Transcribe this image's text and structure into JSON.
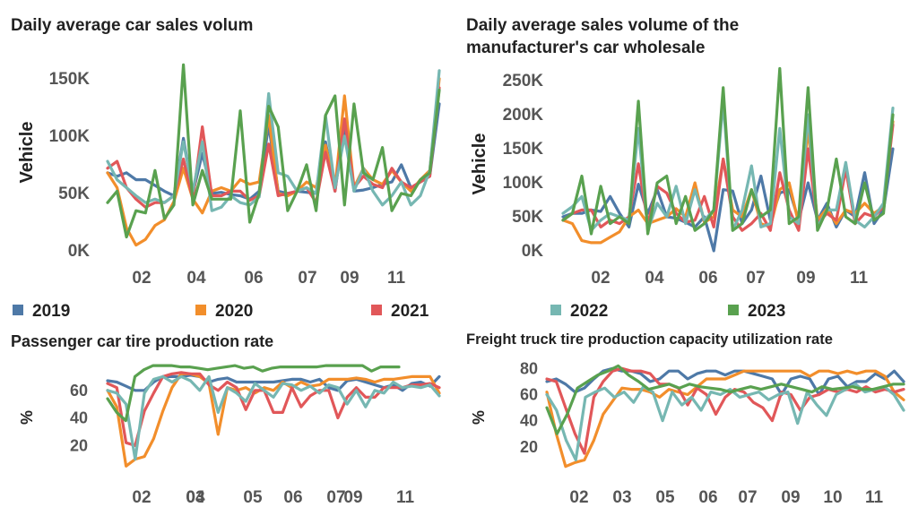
{
  "colors": {
    "2019": "#4e79a7",
    "2020": "#f28e2b",
    "2021": "#e15759",
    "2022": "#76b7b2",
    "2023": "#59a14f"
  },
  "legend": [
    {
      "label": "2019",
      "color": "#4e79a7"
    },
    {
      "label": "2020",
      "color": "#f28e2b"
    },
    {
      "label": "2021",
      "color": "#e15759"
    },
    {
      "label": "2022",
      "color": "#76b7b2"
    },
    {
      "label": "2023",
      "color": "#59a14f"
    }
  ],
  "chart_data": [
    {
      "id": "daily-sales",
      "type": "line",
      "title": "Daily average car sales volum",
      "ylabel": "Vehicle",
      "ylim": [
        0,
        160000
      ],
      "yticks": [
        {
          "value": 0,
          "label": "0K"
        },
        {
          "value": 50000,
          "label": "50K"
        },
        {
          "value": 100000,
          "label": "100K"
        },
        {
          "value": 150000,
          "label": "150K"
        }
      ],
      "xticks": [
        "02",
        "04",
        "06",
        "07",
        "09",
        "11"
      ],
      "series": [
        {
          "name": "2019",
          "color": "#4e79a7",
          "values": [
            68000,
            65000,
            68000,
            62000,
            62000,
            57000,
            52000,
            48000,
            98000,
            50000,
            85000,
            50000,
            51000,
            49000,
            48000,
            45000,
            52000,
            110000,
            52000,
            50000,
            52000,
            51000,
            50000,
            95000,
            52000,
            110000,
            52000,
            53000,
            55000,
            58000,
            60000,
            75000,
            55000,
            60000,
            65000,
            128000
          ]
        },
        {
          "name": "2020",
          "color": "#f28e2b",
          "values": [
            68000,
            55000,
            20000,
            5000,
            10000,
            22000,
            27000,
            43000,
            72000,
            45000,
            33000,
            52000,
            55000,
            52000,
            62000,
            58000,
            60000,
            118000,
            50000,
            48000,
            52000,
            60000,
            55000,
            92000,
            55000,
            135000,
            55000,
            72000,
            62000,
            58000,
            70000,
            60000,
            52000,
            62000,
            70000,
            150000
          ]
        },
        {
          "name": "2021",
          "color": "#e15759",
          "values": [
            72000,
            78000,
            55000,
            45000,
            38000,
            42000,
            42000,
            48000,
            80000,
            45000,
            108000,
            48000,
            48000,
            52000,
            52000,
            44000,
            48000,
            93000,
            48000,
            50000,
            52000,
            55000,
            42000,
            86000,
            52000,
            115000,
            55000,
            65000,
            58000,
            55000,
            72000,
            60000,
            55000,
            60000,
            65000,
            142000
          ]
        },
        {
          "name": "2022",
          "color": "#76b7b2",
          "values": [
            78000,
            62000,
            55000,
            48000,
            42000,
            45000,
            42000,
            48000,
            95000,
            52000,
            95000,
            35000,
            38000,
            48000,
            42000,
            40000,
            47000,
            137000,
            68000,
            65000,
            52000,
            55000,
            50000,
            118000,
            55000,
            100000,
            52000,
            72000,
            52000,
            40000,
            48000,
            60000,
            40000,
            48000,
            70000,
            157000
          ]
        },
        {
          "name": "2023",
          "color": "#59a14f",
          "values": [
            42000,
            52000,
            12000,
            35000,
            33000,
            70000,
            28000,
            40000,
            162000,
            40000,
            70000,
            45000,
            45000,
            45000,
            122000,
            25000,
            50000,
            126000,
            108000,
            35000,
            52000,
            75000,
            35000,
            118000,
            135000,
            40000,
            128000,
            68000,
            62000,
            90000,
            35000,
            50000,
            48000,
            62000,
            68000,
            140000
          ]
        }
      ]
    },
    {
      "id": "wholesale",
      "type": "line",
      "title": "Daily average sales volume of the manufacturer's car wholesale",
      "title_lines": [
        "Daily average sales volume of the",
        "manufacturer's car wholesale"
      ],
      "ylabel": "Vehicle",
      "ylim": [
        0,
        270000
      ],
      "yticks": [
        {
          "value": 0,
          "label": "0K"
        },
        {
          "value": 50000,
          "label": "50K"
        },
        {
          "value": 100000,
          "label": "100K"
        },
        {
          "value": 150000,
          "label": "150K"
        },
        {
          "value": 200000,
          "label": "200K"
        },
        {
          "value": 250000,
          "label": "250K"
        }
      ],
      "xticks": [
        "02",
        "04",
        "06",
        "07",
        "09",
        "11"
      ],
      "series": [
        {
          "name": "2019",
          "color": "#4e79a7",
          "values": [
            50000,
            55000,
            55000,
            60000,
            58000,
            80000,
            55000,
            35000,
            98000,
            55000,
            90000,
            50000,
            48000,
            42000,
            35000,
            50000,
            0,
            90000,
            88000,
            40000,
            60000,
            110000,
            45000,
            85000,
            90000,
            45000,
            100000,
            45000,
            70000,
            35000,
            60000,
            50000,
            115000,
            40000,
            60000,
            150000
          ]
        },
        {
          "name": "2020",
          "color": "#f28e2b",
          "values": [
            45000,
            40000,
            15000,
            12000,
            12000,
            20000,
            28000,
            50000,
            60000,
            40000,
            45000,
            50000,
            62000,
            50000,
            100000,
            42000,
            50000,
            135000,
            60000,
            50000,
            90000,
            40000,
            35000,
            90000,
            100000,
            40000,
            180000,
            45000,
            62000,
            40000,
            60000,
            55000,
            70000,
            55000,
            65000,
            190000
          ]
        },
        {
          "name": "2021",
          "color": "#e15759",
          "values": [
            45000,
            55000,
            60000,
            60000,
            35000,
            45000,
            40000,
            50000,
            128000,
            40000,
            95000,
            85000,
            55000,
            42000,
            45000,
            80000,
            35000,
            135000,
            50000,
            30000,
            40000,
            55000,
            30000,
            115000,
            60000,
            30000,
            150000,
            40000,
            55000,
            45000,
            120000,
            40000,
            55000,
            50000,
            65000,
            185000
          ]
        },
        {
          "name": "2022",
          "color": "#76b7b2",
          "values": [
            55000,
            65000,
            80000,
            30000,
            45000,
            55000,
            50000,
            45000,
            180000,
            30000,
            70000,
            50000,
            95000,
            40000,
            90000,
            45000,
            60000,
            220000,
            30000,
            60000,
            125000,
            35000,
            40000,
            180000,
            50000,
            40000,
            200000,
            35000,
            60000,
            60000,
            130000,
            45000,
            35000,
            50000,
            70000,
            210000
          ]
        },
        {
          "name": "2023",
          "color": "#59a14f",
          "values": [
            45000,
            55000,
            110000,
            25000,
            95000,
            40000,
            50000,
            40000,
            220000,
            25000,
            100000,
            110000,
            40000,
            80000,
            30000,
            40000,
            60000,
            240000,
            30000,
            40000,
            90000,
            50000,
            60000,
            268000,
            40000,
            50000,
            240000,
            30000,
            60000,
            135000,
            50000,
            40000,
            100000,
            45000,
            55000,
            200000
          ]
        }
      ]
    },
    {
      "id": "passenger-tire",
      "type": "line",
      "title": "Passenger car tire production rate",
      "ylabel": "%",
      "ylim": [
        0,
        80
      ],
      "yticks": [
        {
          "value": 20,
          "label": "20"
        },
        {
          "value": 40,
          "label": "40"
        },
        {
          "value": 60,
          "label": "60"
        }
      ],
      "xticks": [
        "02",
        "03",
        "04",
        "05",
        "06",
        "07",
        "09",
        "11"
      ],
      "series": [
        {
          "name": "2019",
          "color": "#4e79a7",
          "values": [
            67,
            66,
            63,
            60,
            60,
            66,
            70,
            70,
            70,
            71,
            70,
            66,
            68,
            69,
            66,
            66,
            66,
            66,
            66,
            67,
            68,
            68,
            66,
            68,
            62,
            60,
            67,
            68,
            66,
            64,
            62,
            64,
            60,
            65,
            66,
            63,
            70
          ]
        },
        {
          "name": "2020",
          "color": "#f28e2b",
          "values": [
            60,
            48,
            5,
            10,
            12,
            25,
            45,
            62,
            72,
            72,
            70,
            65,
            28,
            62,
            60,
            62,
            58,
            62,
            60,
            66,
            62,
            66,
            63,
            64,
            68,
            68,
            68,
            69,
            68,
            66,
            68,
            68,
            69,
            70,
            70,
            70,
            58
          ]
        },
        {
          "name": "2021",
          "color": "#e15759",
          "values": [
            65,
            62,
            22,
            20,
            45,
            58,
            70,
            72,
            73,
            72,
            72,
            64,
            60,
            66,
            62,
            46,
            60,
            60,
            44,
            44,
            62,
            48,
            56,
            60,
            60,
            40,
            55,
            62,
            55,
            55,
            62,
            62,
            62,
            64,
            64,
            65,
            62
          ]
        },
        {
          "name": "2022",
          "color": "#76b7b2",
          "values": [
            60,
            58,
            50,
            10,
            58,
            68,
            70,
            66,
            70,
            67,
            60,
            70,
            44,
            62,
            58,
            52,
            65,
            60,
            55,
            65,
            64,
            60,
            63,
            58,
            64,
            62,
            50,
            60,
            48,
            60,
            58,
            66,
            62,
            63,
            62,
            64,
            56
          ]
        },
        {
          "name": "2023",
          "color": "#59a14f",
          "values": [
            54,
            44,
            38,
            70,
            75,
            78,
            78,
            78,
            77,
            77,
            76,
            75,
            76,
            77,
            78,
            76,
            77,
            74,
            76,
            77,
            77,
            77,
            77,
            77,
            78,
            78,
            78,
            78,
            78,
            74,
            77,
            77,
            77
          ]
        }
      ]
    },
    {
      "id": "truck-tire",
      "type": "line",
      "title": "Freight truck tire production capacity utilization rate",
      "ylabel": "%",
      "ylim": [
        0,
        85
      ],
      "yticks": [
        {
          "value": 20,
          "label": "20"
        },
        {
          "value": 40,
          "label": "40"
        },
        {
          "value": 60,
          "label": "60"
        },
        {
          "value": 80,
          "label": "80"
        }
      ],
      "xticks": [
        "02",
        "03",
        "05",
        "06",
        "07",
        "09",
        "10",
        "11"
      ],
      "series": [
        {
          "name": "2019",
          "color": "#4e79a7",
          "values": [
            70,
            72,
            68,
            62,
            65,
            72,
            78,
            80,
            78,
            78,
            76,
            70,
            72,
            78,
            78,
            72,
            76,
            78,
            78,
            75,
            78,
            78,
            76,
            74,
            72,
            60,
            72,
            74,
            72,
            60,
            72,
            74,
            66,
            70,
            70,
            76,
            72,
            78,
            70
          ]
        },
        {
          "name": "2020",
          "color": "#f28e2b",
          "values": [
            62,
            30,
            5,
            8,
            10,
            25,
            45,
            55,
            65,
            64,
            64,
            62,
            58,
            64,
            62,
            60,
            66,
            72,
            72,
            72,
            75,
            78,
            78,
            78,
            78,
            78,
            78,
            78,
            74,
            78,
            78,
            76,
            78,
            76,
            78,
            78,
            74,
            62,
            56
          ]
        },
        {
          "name": "2021",
          "color": "#e15759",
          "values": [
            72,
            70,
            50,
            30,
            15,
            58,
            70,
            78,
            80,
            78,
            78,
            76,
            68,
            68,
            65,
            52,
            65,
            60,
            45,
            58,
            64,
            62,
            54,
            50,
            40,
            62,
            60,
            48,
            58,
            60,
            64,
            62,
            64,
            62,
            66,
            62,
            64,
            62,
            64
          ]
        },
        {
          "name": "2022",
          "color": "#76b7b2",
          "values": [
            60,
            48,
            25,
            10,
            58,
            62,
            65,
            58,
            62,
            54,
            66,
            62,
            40,
            62,
            52,
            58,
            48,
            62,
            60,
            64,
            58,
            60,
            62,
            56,
            60,
            62,
            38,
            62,
            52,
            44,
            60,
            64,
            68,
            62,
            64,
            66,
            60,
            48
          ]
        },
        {
          "name": "2023",
          "color": "#59a14f",
          "values": [
            50,
            30,
            45,
            65,
            70,
            75,
            78,
            82,
            75,
            70,
            64,
            66,
            68,
            65,
            68,
            66,
            65,
            64,
            62,
            64,
            66,
            64,
            66,
            68,
            66,
            64,
            62,
            66,
            64,
            65,
            66,
            64,
            64,
            66,
            68,
            68
          ]
        }
      ]
    }
  ]
}
